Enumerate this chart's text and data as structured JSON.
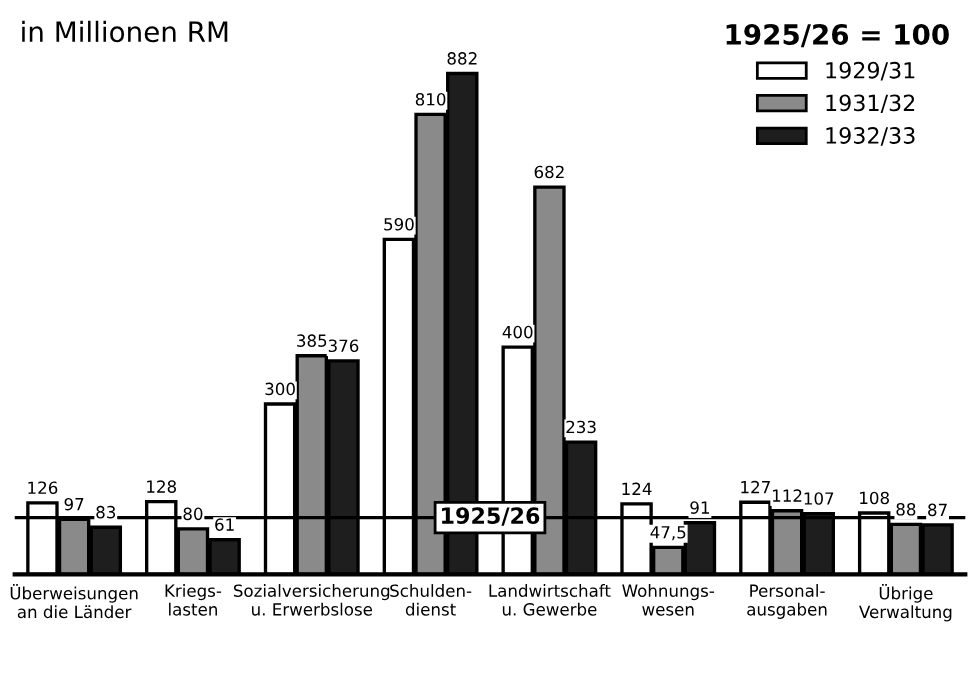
{
  "chart_data": {
    "type": "bar",
    "title": "in Millionen RM",
    "legend_title": "1925/26 = 100",
    "legend": "top right",
    "categories": [
      "Überweisungen\nan die Länder",
      "Kriegs-\nlasten",
      "Sozialversicherung\nu. Erwerbslose",
      "Schulden-\ndienst",
      "Landwirtschaft\nu. Gewerbe",
      "Wohnungs-\nwesen",
      "Personal-\nausgaben",
      "Übrige\nVerwaltung"
    ],
    "series": [
      {
        "name": "1929/31",
        "color": "#ffffff",
        "values": [
          126,
          128,
          300,
          590,
          400,
          124,
          127,
          108
        ],
        "value_labels": [
          "126",
          "128",
          "300",
          "590",
          "400",
          "124",
          "127",
          "108"
        ]
      },
      {
        "name": "1931/32",
        "color": "#8a8a8a",
        "values": [
          97,
          80,
          385,
          810,
          682,
          47.5,
          112,
          88
        ],
        "value_labels": [
          "97",
          "80",
          "385",
          "810",
          "682",
          "47,5",
          "112",
          "88"
        ]
      },
      {
        "name": "1932/33",
        "color": "#1e1e1e",
        "values": [
          83,
          61,
          376,
          882,
          233,
          91,
          107,
          87
        ],
        "value_labels": [
          "83",
          "61",
          "376",
          "882",
          "233",
          "91",
          "107",
          "87"
        ]
      }
    ],
    "ref_lines": [
      {
        "axis": "y",
        "value": 100,
        "color": "#000000"
      }
    ],
    "annotations": [
      {
        "text": "1925/26",
        "y": 100
      }
    ]
  }
}
